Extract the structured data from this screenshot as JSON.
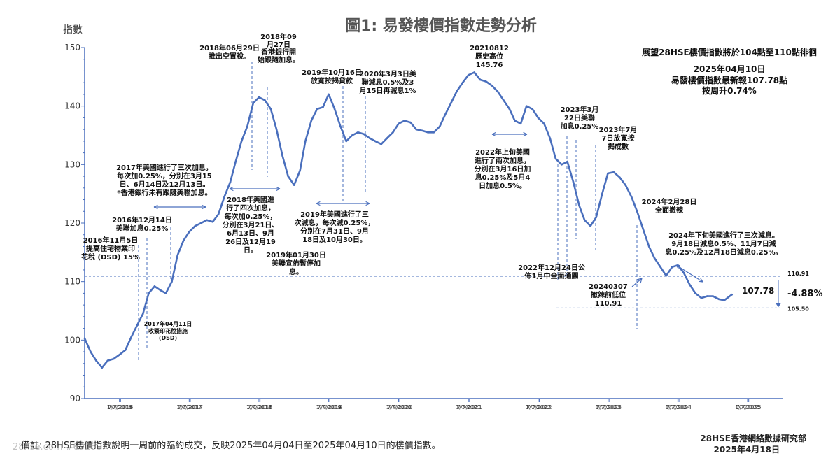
{
  "chart_data": {
    "type": "line",
    "title": "圖1: 易發樓價指數走勢分析",
    "ylabel": "指數",
    "ylim": [
      90,
      150
    ],
    "yticks": [
      90,
      100,
      110,
      120,
      130,
      140,
      150
    ],
    "xlim": [
      "2016-01-01",
      "2025-12-31"
    ],
    "xticks": [
      "1/7/2016",
      "7/7/2016",
      "1/7/2017",
      "7/7/2017",
      "1/7/2018",
      "7/7/2018",
      "1/7/2019",
      "7/7/2019",
      "1/7/2020",
      "7/7/2020",
      "1/7/2021",
      "7/7/2021",
      "1/7/2022",
      "7/7/2022",
      "1/7/2023",
      "7/7/2023",
      "1/7/2024",
      "7/7/2024",
      "1/7/2025",
      "7/7/2025"
    ],
    "grid": false,
    "series": [
      {
        "points": [
          [
            "2016-01-01",
            100.3
          ],
          [
            "2016-02-01",
            98.0
          ],
          [
            "2016-03-01",
            96.5
          ],
          [
            "2016-04-01",
            95.3
          ],
          [
            "2016-05-01",
            96.5
          ],
          [
            "2016-06-01",
            96.8
          ],
          [
            "2016-07-01",
            97.5
          ],
          [
            "2016-08-01",
            98.3
          ],
          [
            "2016-09-01",
            100.5
          ],
          [
            "2016-10-01",
            102.5
          ],
          [
            "2016-11-01",
            104.5
          ],
          [
            "2016-12-01",
            108.0
          ],
          [
            "2017-01-01",
            109.2
          ],
          [
            "2017-02-01",
            108.5
          ],
          [
            "2017-03-01",
            108.0
          ],
          [
            "2017-04-01",
            110.0
          ],
          [
            "2017-05-01",
            114.5
          ],
          [
            "2017-06-01",
            117.0
          ],
          [
            "2017-07-01",
            118.5
          ],
          [
            "2017-08-01",
            119.5
          ],
          [
            "2017-09-01",
            120.0
          ],
          [
            "2017-10-01",
            120.5
          ],
          [
            "2017-11-01",
            120.2
          ],
          [
            "2017-12-01",
            121.5
          ],
          [
            "2018-01-01",
            124.5
          ],
          [
            "2018-02-01",
            127.0
          ],
          [
            "2018-03-01",
            130.5
          ],
          [
            "2018-04-01",
            134.0
          ],
          [
            "2018-05-01",
            136.5
          ],
          [
            "2018-06-01",
            140.5
          ],
          [
            "2018-07-01",
            141.5
          ],
          [
            "2018-08-01",
            141.0
          ],
          [
            "2018-09-01",
            139.5
          ],
          [
            "2018-10-01",
            136.0
          ],
          [
            "2018-11-01",
            131.5
          ],
          [
            "2018-12-01",
            128.0
          ],
          [
            "2019-01-01",
            126.5
          ],
          [
            "2019-02-01",
            129.0
          ],
          [
            "2019-03-01",
            134.0
          ],
          [
            "2019-04-01",
            137.5
          ],
          [
            "2019-05-01",
            139.5
          ],
          [
            "2019-06-01",
            139.8
          ],
          [
            "2019-07-01",
            142.0
          ],
          [
            "2019-08-01",
            139.5
          ],
          [
            "2019-09-01",
            136.5
          ],
          [
            "2019-10-01",
            134.0
          ],
          [
            "2019-11-01",
            135.0
          ],
          [
            "2019-12-01",
            135.5
          ],
          [
            "2020-01-01",
            135.2
          ],
          [
            "2020-02-01",
            134.5
          ],
          [
            "2020-03-01",
            134.0
          ],
          [
            "2020-04-01",
            133.5
          ],
          [
            "2020-05-01",
            134.5
          ],
          [
            "2020-06-01",
            135.5
          ],
          [
            "2020-07-01",
            137.0
          ],
          [
            "2020-08-01",
            137.5
          ],
          [
            "2020-09-01",
            137.2
          ],
          [
            "2020-10-01",
            136.0
          ],
          [
            "2020-11-01",
            135.8
          ],
          [
            "2020-12-01",
            135.5
          ],
          [
            "2021-01-01",
            135.5
          ],
          [
            "2021-02-01",
            136.5
          ],
          [
            "2021-03-01",
            138.5
          ],
          [
            "2021-04-01",
            140.5
          ],
          [
            "2021-05-01",
            142.5
          ],
          [
            "2021-06-01",
            144.0
          ],
          [
            "2021-07-01",
            145.3
          ],
          [
            "2021-08-01",
            145.76
          ],
          [
            "2021-09-01",
            144.5
          ],
          [
            "2021-10-01",
            144.2
          ],
          [
            "2021-11-01",
            143.5
          ],
          [
            "2021-12-01",
            142.5
          ],
          [
            "2022-01-01",
            141.0
          ],
          [
            "2022-02-01",
            139.5
          ],
          [
            "2022-03-01",
            137.5
          ],
          [
            "2022-04-01",
            137.0
          ],
          [
            "2022-05-01",
            140.0
          ],
          [
            "2022-06-01",
            139.5
          ],
          [
            "2022-07-01",
            138.0
          ],
          [
            "2022-08-01",
            137.0
          ],
          [
            "2022-09-01",
            134.5
          ],
          [
            "2022-10-01",
            131.0
          ],
          [
            "2022-11-01",
            130.0
          ],
          [
            "2022-12-01",
            130.5
          ],
          [
            "2023-01-01",
            127.0
          ],
          [
            "2023-02-01",
            123.0
          ],
          [
            "2023-03-01",
            120.5
          ],
          [
            "2023-04-01",
            119.5
          ],
          [
            "2023-05-01",
            121.0
          ],
          [
            "2023-06-01",
            125.0
          ],
          [
            "2023-07-01",
            128.5
          ],
          [
            "2023-08-01",
            128.7
          ],
          [
            "2023-09-01",
            127.8
          ],
          [
            "2023-10-01",
            126.5
          ],
          [
            "2023-11-01",
            124.5
          ],
          [
            "2023-12-01",
            122.0
          ],
          [
            "2024-01-01",
            119.0
          ],
          [
            "2024-02-01",
            116.0
          ],
          [
            "2024-03-01",
            114.0
          ],
          [
            "2024-04-01",
            112.5
          ],
          [
            "2024-05-01",
            111.0
          ],
          [
            "2024-06-01",
            112.5
          ],
          [
            "2024-07-01",
            112.8
          ],
          [
            "2024-08-01",
            111.5
          ],
          [
            "2024-09-01",
            109.5
          ],
          [
            "2024-10-01",
            108.0
          ],
          [
            "2024-11-01",
            107.2
          ],
          [
            "2024-12-01",
            107.5
          ],
          [
            "2025-01-01",
            107.5
          ],
          [
            "2025-02-01",
            107.0
          ],
          [
            "2025-03-01",
            106.8
          ],
          [
            "2025-04-10",
            107.78
          ]
        ]
      }
    ],
    "reference_lines": [
      {
        "value": 110.91,
        "label": "110.91"
      },
      {
        "value": 105.5,
        "label": "105.50"
      }
    ],
    "headline": {
      "line1": "展望28HSE樓價指數將於104點至110點徘徊",
      "line2": "2025年04月10日",
      "line3": "易發樓價指數最新報107.78點",
      "line4": "按周升0.74%"
    },
    "end_value_label": "107.78",
    "change_label": "-4.88%",
    "annotations": [
      {
        "id": "a1",
        "lines": [
          "2016年11月5日",
          "提高住宅物業印",
          "花稅 (DSD) 15%"
        ]
      },
      {
        "id": "a2",
        "lines": [
          "2016年12月14日",
          "美聯加息0.25%"
        ]
      },
      {
        "id": "a3",
        "lines": [
          "2017年04月11日",
          "收緊印花稅措施",
          "(DSD)"
        ]
      },
      {
        "id": "a4",
        "lines": [
          "2017年美國進行了三次加息，",
          "每次加0.25%，分別在3月15",
          "日、6月14日及12月13日。",
          "*香港銀行未有跟隨美聯加息。"
        ]
      },
      {
        "id": "a5",
        "lines": [
          "2018年06月29日",
          "推出空置稅。"
        ]
      },
      {
        "id": "a6",
        "lines": [
          "2018年09",
          "月27日",
          "香港銀行開",
          "始跟隨加息。"
        ]
      },
      {
        "id": "a7",
        "lines": [
          "2018年美國進",
          "行了四次加息，",
          "每次加0.25%，",
          "分別在3月21日、",
          "6月13日、9月",
          "26日及12月19",
          "日。"
        ]
      },
      {
        "id": "a8",
        "lines": [
          "2019年01月30日",
          "美聯宣佈暫停加",
          "息。"
        ]
      },
      {
        "id": "a9",
        "lines": [
          "2019年10月16日",
          "放寬按揭貸款"
        ]
      },
      {
        "id": "a10",
        "lines": [
          "2019年美國進行了三",
          "次減息，每次減0.25%，",
          "分別在7月31日、9月",
          "18日及10月30日。"
        ]
      },
      {
        "id": "a11",
        "lines": [
          "2020年3月3日美",
          "聯減息0.5%及3",
          "月15日再減息1%"
        ]
      },
      {
        "id": "a12",
        "lines": [
          "20210812",
          "歷史高位",
          "145.76"
        ]
      },
      {
        "id": "a13",
        "lines": [
          "2022年上旬美國",
          "進行了兩次加息，",
          "分別在3月16日加",
          "息0.25%及5月4",
          "日加息0.5%。"
        ]
      },
      {
        "id": "a14",
        "lines": [
          "2023年3月",
          "22日美聯",
          "加息0.25%"
        ]
      },
      {
        "id": "a15",
        "lines": [
          "2023年7月",
          "7日放寬按",
          "揭成數"
        ]
      },
      {
        "id": "a16",
        "lines": [
          "2024年2月28日",
          "全面撤辣"
        ]
      },
      {
        "id": "a17",
        "lines": [
          "2022年12月24日公",
          "佈1月中全面通關"
        ]
      },
      {
        "id": "a18",
        "lines": [
          "20240307",
          "撤辣前低位",
          "110.91"
        ]
      },
      {
        "id": "a19",
        "lines": [
          "2024年下旬美國進行了三次減息。",
          "9月18日減息0.5%、11月7日減",
          "息0.25%及12月18日減息0.25%。"
        ]
      }
    ],
    "colors": {
      "line": "#4a6fbd",
      "axis": "#4a6fbd",
      "ref": "#4a6fbd",
      "text": "#222222"
    }
  },
  "footer": {
    "note": "備註: 28HSE樓價指數說明一周前的臨約成交，反映2025年04月04日至2025年04月10日的樓價指數。",
    "org": "28HSE香港網絡數據研究部",
    "date": "2025年4月18日",
    "watermark": "28hse.com #69260"
  }
}
